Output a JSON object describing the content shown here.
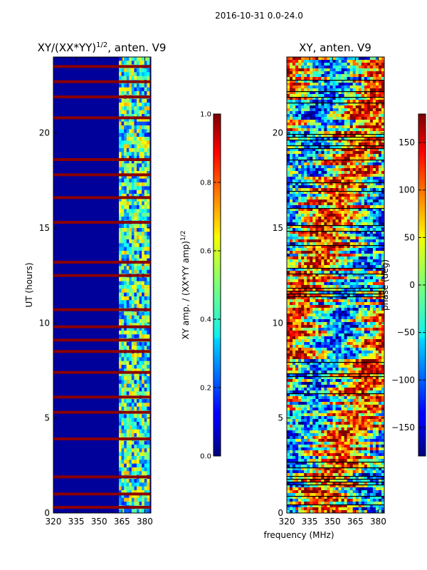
{
  "figure_title": "2016-10-31 0.0-24.0",
  "chart_data": [
    {
      "type": "heatmap",
      "title_main": "XY/(XX*YY)",
      "title_exponent": "1/2",
      "title_suffix": ", anten. V9",
      "xlabel": "",
      "ylabel": "UT (hours)",
      "xlim": [
        320,
        384
      ],
      "ylim": [
        0,
        24
      ],
      "xticks": [
        320,
        335,
        350,
        365,
        380
      ],
      "yticks": [
        0,
        5,
        10,
        15,
        20
      ],
      "colorbar": {
        "label_main": "XY amp. / (XX*YY amp)",
        "label_exponent": "1/2",
        "range": [
          0.0,
          1.0
        ],
        "ticks": [
          "0.0",
          "0.2",
          "0.4",
          "0.6",
          "0.8",
          "1.0"
        ]
      },
      "bright_band_mhz": [
        363,
        383
      ],
      "flagged_hours": [
        0.3,
        1.0,
        1.9,
        3.9,
        5.3,
        6.1,
        7.4,
        8.5,
        9.1,
        9.8,
        10.7,
        12.5,
        13.2,
        15.3,
        16.6,
        17.8,
        18.6,
        20.8,
        21.9,
        22.7,
        23.5
      ]
    },
    {
      "type": "heatmap",
      "title": "XY, anten. V9",
      "xlabel": "frequency (MHz)",
      "ylabel": "",
      "xlim": [
        320,
        384
      ],
      "ylim": [
        0,
        24
      ],
      "xticks": [
        320,
        335,
        350,
        365,
        380
      ],
      "yticks": [
        0,
        5,
        10,
        15,
        20
      ],
      "colorbar": {
        "label": "phase (deg)",
        "range": [
          -180,
          180
        ],
        "ticks": [
          "−150",
          "−100",
          "−50",
          "0",
          "50",
          "100",
          "150"
        ],
        "tick_values": [
          -150,
          -100,
          -50,
          0,
          50,
          100,
          150
        ]
      }
    }
  ]
}
